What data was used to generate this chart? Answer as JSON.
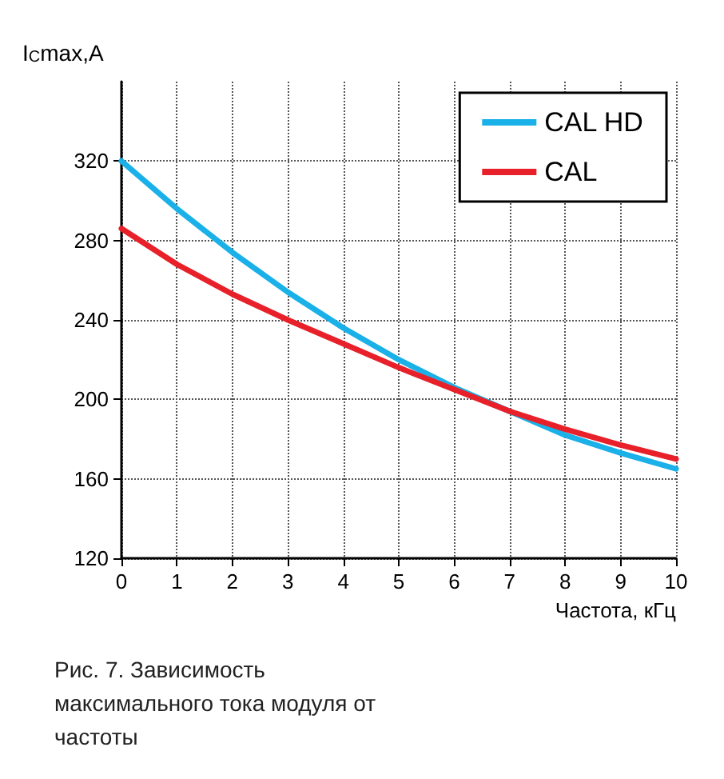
{
  "chart_data": {
    "type": "line",
    "ylabel": "I$_{C}$max,A",
    "xlabel": "Частота, кГц",
    "annotations": [
      "Рис. 7. Зависимость максимального тока модуля от частоты"
    ],
    "x": [
      0,
      1,
      2,
      3,
      4,
      5,
      6,
      7,
      8,
      9,
      10
    ],
    "series": [
      {
        "name": "CAL HD",
        "color": "#1ab0e8",
        "values": [
          320,
          296,
          274,
          254,
          236,
          220,
          206,
          194,
          182,
          173,
          165
        ]
      },
      {
        "name": "CAL",
        "color": "#e8202a",
        "values": [
          286,
          268,
          253,
          240,
          228,
          216,
          205,
          194,
          185,
          177,
          170
        ]
      }
    ],
    "xlim": [
      0,
      10
    ],
    "xticks": [
      0,
      1,
      2,
      3,
      4,
      5,
      6,
      7,
      8,
      9,
      10
    ],
    "ylim": [
      120,
      360
    ],
    "yticks": [
      120,
      160,
      200,
      240,
      280,
      320
    ],
    "grid": true,
    "legend": "top right",
    "marker": "none",
    "line_style": "solid"
  }
}
